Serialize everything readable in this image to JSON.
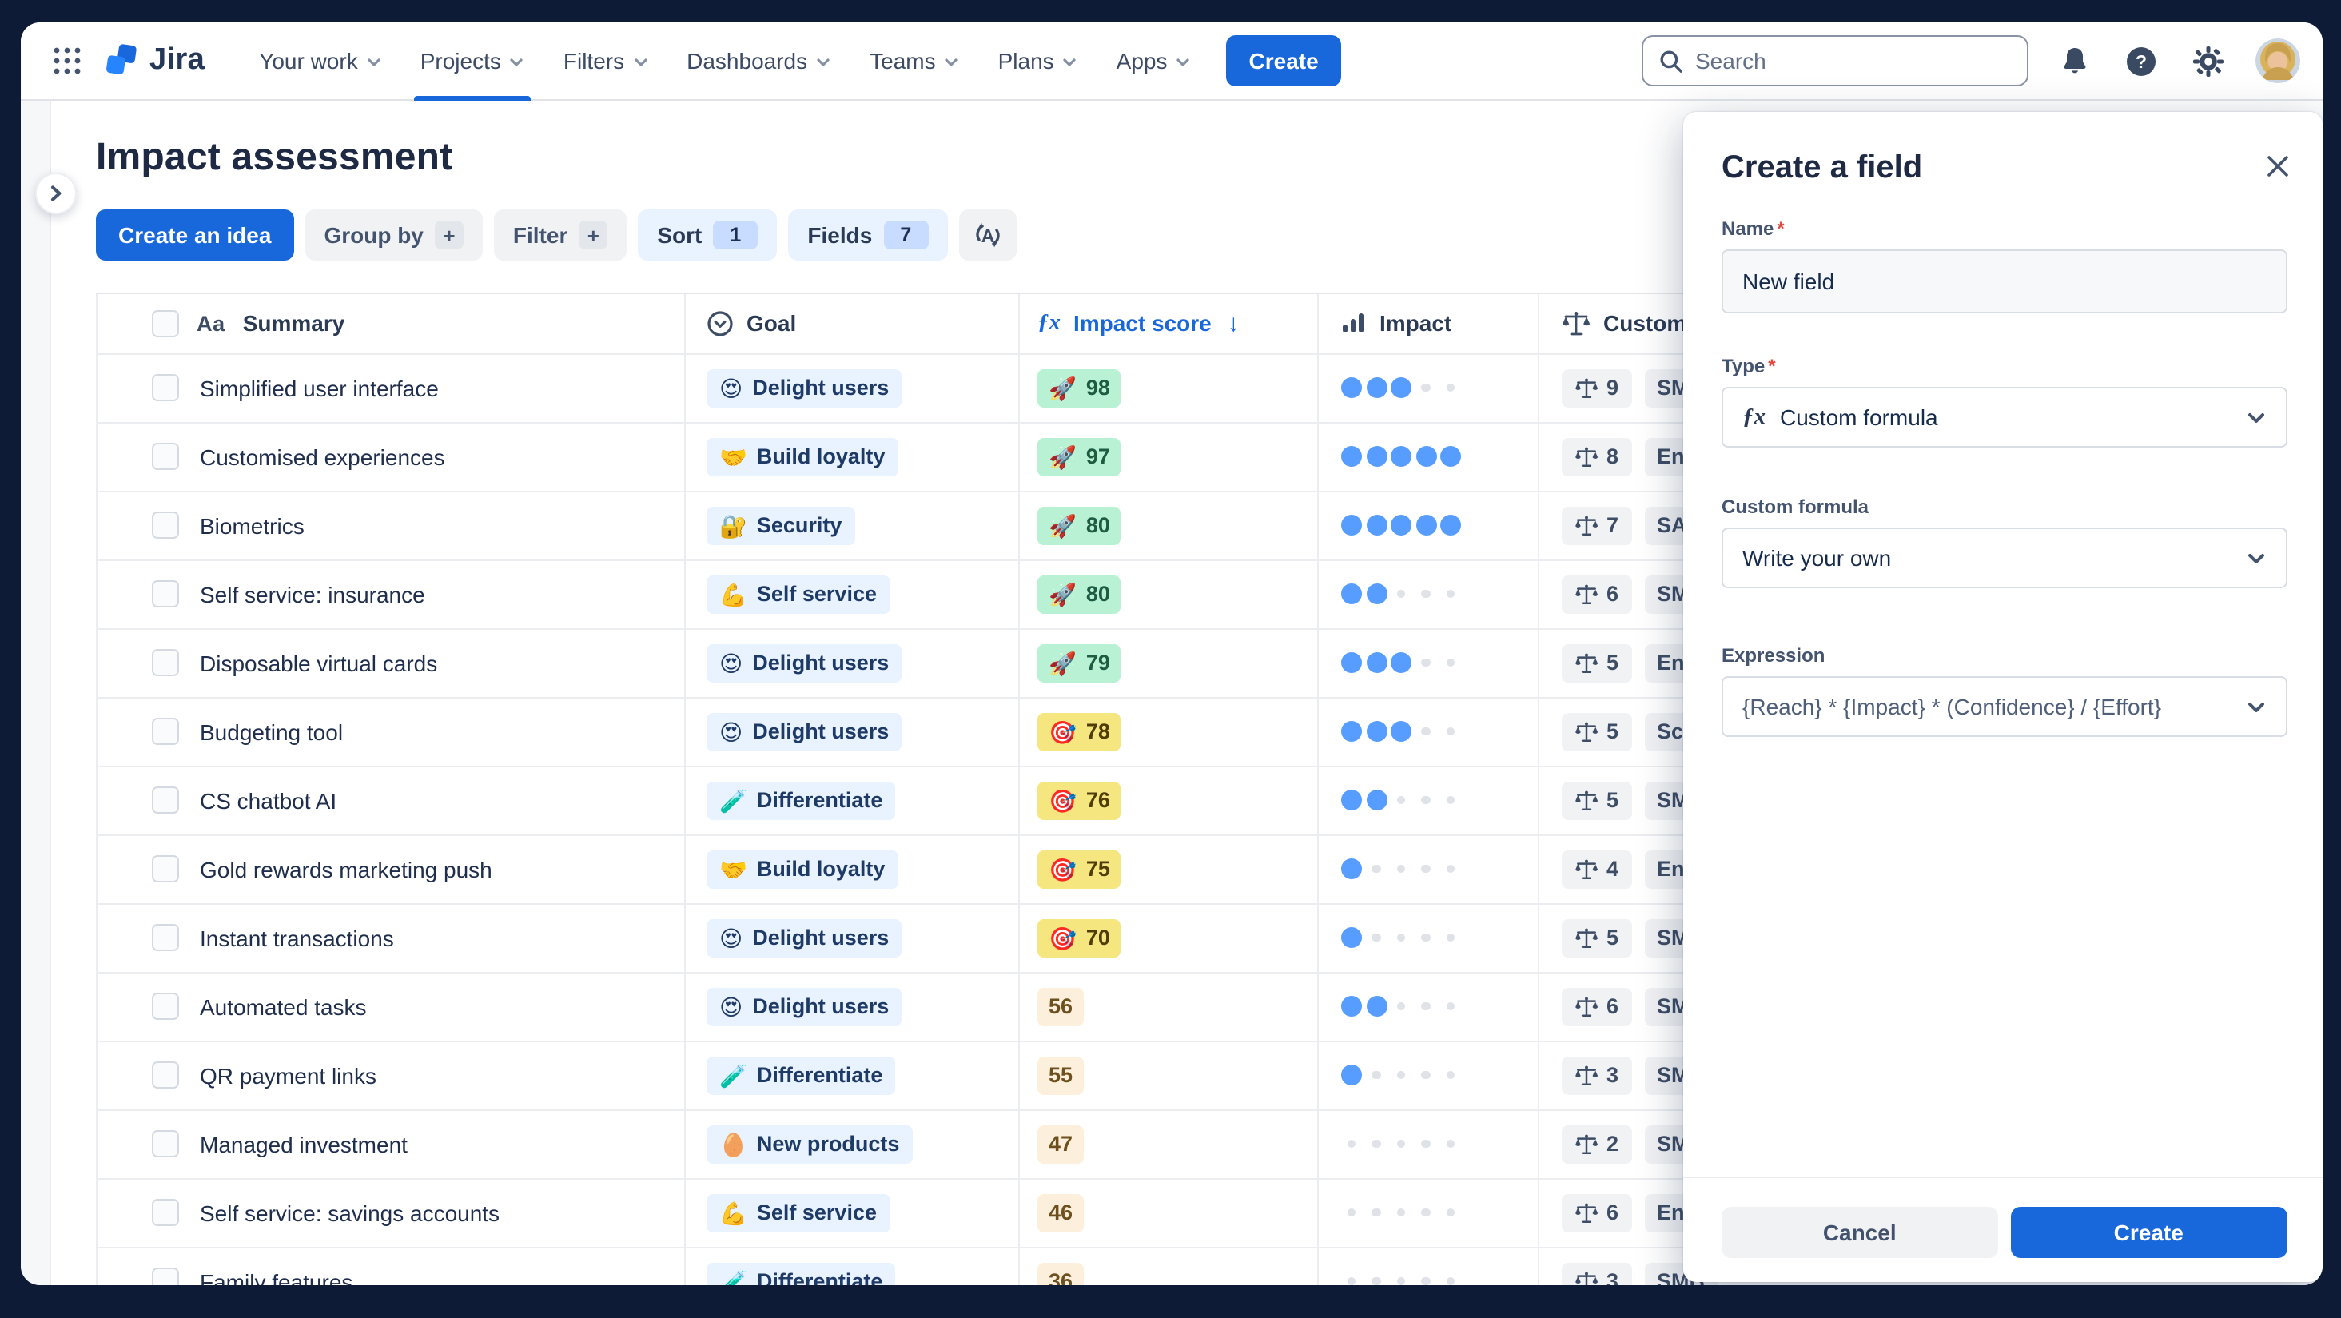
{
  "app": {
    "name": "Jira"
  },
  "nav": {
    "menu": [
      {
        "label": "Your work",
        "active": false
      },
      {
        "label": "Projects",
        "active": true
      },
      {
        "label": "Filters",
        "active": false
      },
      {
        "label": "Dashboards",
        "active": false
      },
      {
        "label": "Teams",
        "active": false
      },
      {
        "label": "Plans",
        "active": false
      },
      {
        "label": "Apps",
        "active": false
      }
    ],
    "create_label": "Create",
    "search_placeholder": "Search",
    "icons": [
      "app-switcher-icon",
      "search-icon",
      "notifications-icon",
      "help-icon",
      "settings-icon",
      "avatar"
    ]
  },
  "page": {
    "title": "Impact assessment",
    "toolbar": {
      "create_idea": "Create an idea",
      "group_by": "Group by",
      "group_by_plus": "+",
      "filter": "Filter",
      "filter_plus": "+",
      "sort": "Sort",
      "sort_count": "1",
      "fields": "Fields",
      "fields_count": "7",
      "extra_icon": "recalculate-icon"
    }
  },
  "table": {
    "sort": {
      "column": "Impact score",
      "direction": "desc"
    },
    "columns": [
      {
        "id": "summary",
        "label": "Summary",
        "icon": "text-icon"
      },
      {
        "id": "goal",
        "label": "Goal",
        "icon": "select-icon"
      },
      {
        "id": "impact_score",
        "label": "Impact score",
        "icon": "formula-icon",
        "sorted": "desc"
      },
      {
        "id": "impact",
        "label": "Impact",
        "icon": "bar-chart-icon"
      },
      {
        "id": "customer",
        "label": "Custome",
        "icon": "weight-icon",
        "truncated": true
      }
    ],
    "rows": [
      {
        "summary": "Simplified user interface",
        "goal": {
          "emoji": "😍",
          "label": "Delight users"
        },
        "score": {
          "value": "98",
          "tone": "green",
          "emoji": "🚀"
        },
        "impact_dots": 3,
        "customer": {
          "weight": "9",
          "segment": "SMB"
        }
      },
      {
        "summary": "Customised experiences",
        "goal": {
          "emoji": "🤝",
          "label": "Build loyalty"
        },
        "score": {
          "value": "97",
          "tone": "green",
          "emoji": "🚀"
        },
        "impact_dots": 5,
        "customer": {
          "weight": "8",
          "segment": "Enter"
        }
      },
      {
        "summary": "Biometrics",
        "goal": {
          "emoji": "🔐",
          "label": "Security"
        },
        "score": {
          "value": "80",
          "tone": "green",
          "emoji": "🚀"
        },
        "impact_dots": 5,
        "customer": {
          "weight": "7",
          "segment": "SAAS"
        }
      },
      {
        "summary": "Self service: insurance",
        "goal": {
          "emoji": "💪",
          "label": "Self service"
        },
        "score": {
          "value": "80",
          "tone": "green",
          "emoji": "🚀"
        },
        "impact_dots": 2,
        "customer": {
          "weight": "6",
          "segment": "SMB"
        }
      },
      {
        "summary": "Disposable virtual cards",
        "goal": {
          "emoji": "😍",
          "label": "Delight users"
        },
        "score": {
          "value": "79",
          "tone": "green",
          "emoji": "🚀"
        },
        "impact_dots": 3,
        "customer": {
          "weight": "5",
          "segment": "Enterp"
        }
      },
      {
        "summary": "Budgeting tool",
        "goal": {
          "emoji": "😍",
          "label": "Delight users"
        },
        "score": {
          "value": "78",
          "tone": "yellow",
          "emoji": "🎯"
        },
        "impact_dots": 3,
        "customer": {
          "weight": "5",
          "segment": "Scale"
        }
      },
      {
        "summary": "CS chatbot AI",
        "goal": {
          "emoji": "🧪",
          "label": "Differentiate"
        },
        "score": {
          "value": "76",
          "tone": "yellow",
          "emoji": "🎯"
        },
        "impact_dots": 2,
        "customer": {
          "weight": "5",
          "segment": "SMB"
        }
      },
      {
        "summary": "Gold rewards marketing push",
        "goal": {
          "emoji": "🤝",
          "label": "Build loyalty"
        },
        "score": {
          "value": "75",
          "tone": "yellow",
          "emoji": "🎯"
        },
        "impact_dots": 1,
        "customer": {
          "weight": "4",
          "segment": "Enter"
        }
      },
      {
        "summary": "Instant transactions",
        "goal": {
          "emoji": "😍",
          "label": "Delight users"
        },
        "score": {
          "value": "70",
          "tone": "yellow",
          "emoji": "🎯"
        },
        "impact_dots": 1,
        "customer": {
          "weight": "5",
          "segment": "SMB"
        }
      },
      {
        "summary": "Automated tasks",
        "goal": {
          "emoji": "😍",
          "label": "Delight users"
        },
        "score": {
          "value": "56",
          "tone": "plain",
          "emoji": ""
        },
        "impact_dots": 2,
        "customer": {
          "weight": "6",
          "segment": "SMB"
        }
      },
      {
        "summary": "QR payment links",
        "goal": {
          "emoji": "🧪",
          "label": "Differentiate"
        },
        "score": {
          "value": "55",
          "tone": "plain",
          "emoji": ""
        },
        "impact_dots": 1,
        "customer": {
          "weight": "3",
          "segment": "SMB"
        }
      },
      {
        "summary": "Managed investment",
        "goal": {
          "emoji": "🥚",
          "label": "New products"
        },
        "score": {
          "value": "47",
          "tone": "plain",
          "emoji": ""
        },
        "impact_dots": 0,
        "customer": {
          "weight": "2",
          "segment": "SMB"
        }
      },
      {
        "summary": "Self service: savings accounts",
        "goal": {
          "emoji": "💪",
          "label": "Self service"
        },
        "score": {
          "value": "46",
          "tone": "plain",
          "emoji": ""
        },
        "impact_dots": 0,
        "customer": {
          "weight": "6",
          "segment": "Enter"
        }
      },
      {
        "summary": "Family features",
        "goal": {
          "emoji": "🧪",
          "label": "Differentiate"
        },
        "score": {
          "value": "36",
          "tone": "plain",
          "emoji": ""
        },
        "impact_dots": 0,
        "customer": {
          "weight": "3",
          "segment": "SMB"
        }
      }
    ]
  },
  "panel": {
    "title": "Create a field",
    "close_icon": "close-icon",
    "required_mark": "*",
    "fields": {
      "name": {
        "label": "Name",
        "required": true,
        "value": "New field"
      },
      "type": {
        "label": "Type",
        "required": true,
        "value": "Custom formula",
        "icon": "formula-icon"
      },
      "custom_formula": {
        "label": "Custom formula",
        "value": "Write your own"
      },
      "expression": {
        "label": "Expression",
        "value": "{Reach} * {Impact} * (Confidence} / {Effort}"
      }
    },
    "actions": {
      "cancel": "Cancel",
      "create": "Create"
    }
  },
  "colors": {
    "accent_blue": "#1868DB",
    "chip_blue_bg": "#E9F2FF",
    "score_green_bg": "#B8F1D4",
    "score_yellow_bg": "#F5E67F",
    "score_plain_bg": "#FCF0DD",
    "dot_filled": "#579DFF",
    "dark_backdrop": "#0E1B36"
  }
}
